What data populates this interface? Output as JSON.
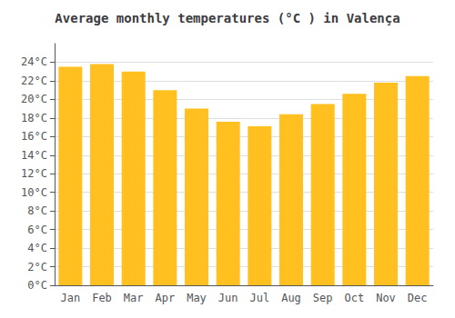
{
  "chart_data": {
    "type": "bar",
    "title": "Average monthly temperatures (°C ) in Valença",
    "categories": [
      "Jan",
      "Feb",
      "Mar",
      "Apr",
      "May",
      "Jun",
      "Jul",
      "Aug",
      "Sep",
      "Oct",
      "Nov",
      "Dec"
    ],
    "values": [
      23.5,
      23.8,
      23.0,
      21.0,
      19.0,
      17.6,
      17.1,
      18.4,
      19.5,
      20.6,
      21.8,
      22.5
    ],
    "color": "#FFC020",
    "ylim": [
      0,
      26
    ],
    "yticks": [
      {
        "value": 0,
        "label": "0°C"
      },
      {
        "value": 2,
        "label": "2°C"
      },
      {
        "value": 4,
        "label": "4°C"
      },
      {
        "value": 6,
        "label": "6°C"
      },
      {
        "value": 8,
        "label": "8°C"
      },
      {
        "value": 10,
        "label": "10°C"
      },
      {
        "value": 12,
        "label": "12°C"
      },
      {
        "value": 14,
        "label": "14°C"
      },
      {
        "value": 16,
        "label": "16°C"
      },
      {
        "value": 18,
        "label": "18°C"
      },
      {
        "value": 20,
        "label": "20°C"
      },
      {
        "value": 22,
        "label": "22°C"
      },
      {
        "value": 24,
        "label": "24°C"
      }
    ],
    "grid": true
  }
}
